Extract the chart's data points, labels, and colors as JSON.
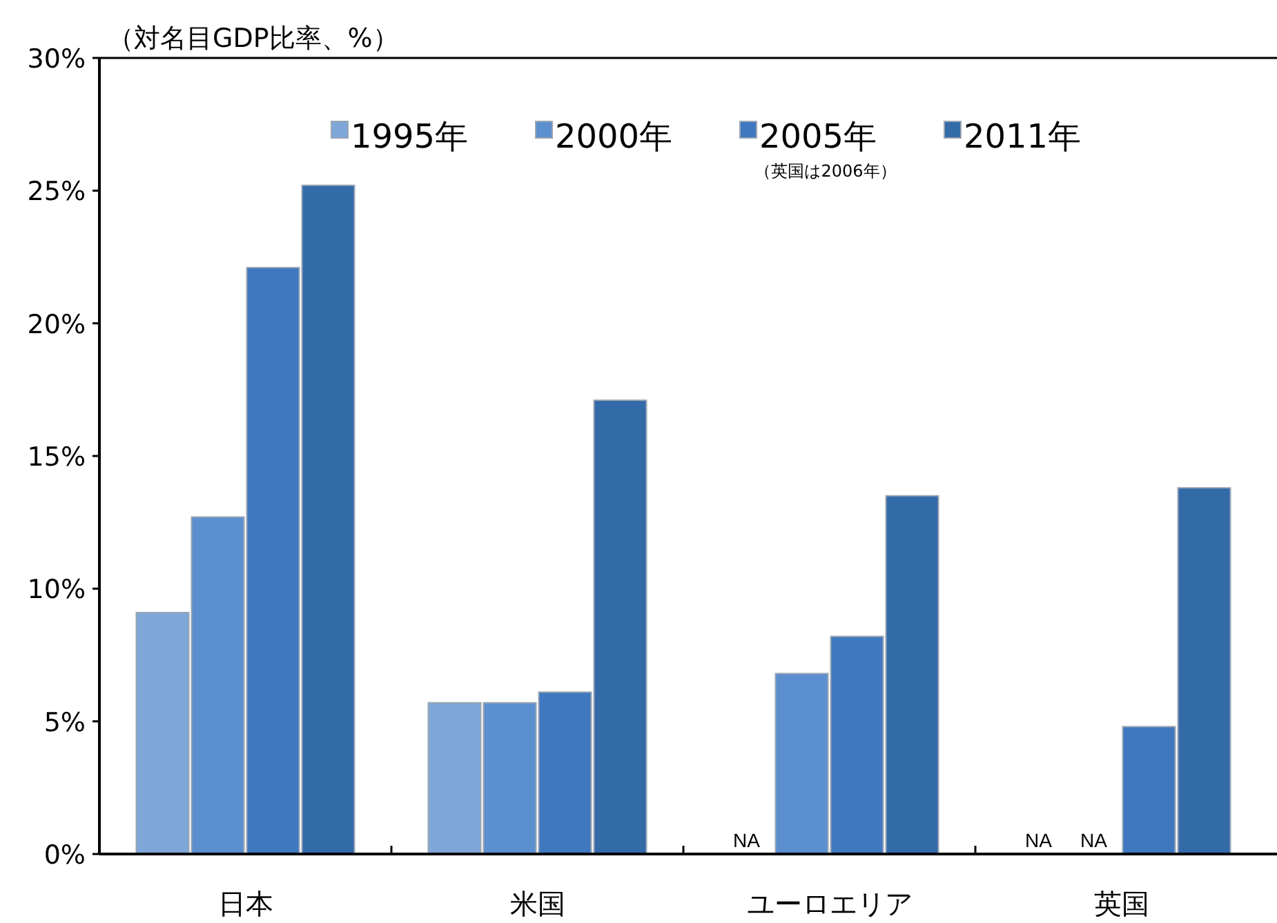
{
  "chart_data": {
    "type": "bar",
    "ylabel": "（対名目GDP比率、%）",
    "categories": [
      "日本",
      "米国",
      "ユーロエリア",
      "英国"
    ],
    "series": [
      {
        "name": "1995年",
        "color": "#7ea6d8",
        "values": [
          9.1,
          5.7,
          null,
          null
        ],
        "value_labels": [
          null,
          null,
          "NA",
          "NA"
        ]
      },
      {
        "name": "2000年",
        "color": "#5b8fcf",
        "values": [
          12.7,
          5.7,
          6.8,
          null
        ],
        "value_labels": [
          null,
          null,
          null,
          "NA"
        ]
      },
      {
        "name": "2005年",
        "color": "#3f78bf",
        "values": [
          22.1,
          6.1,
          8.2,
          4.8
        ]
      },
      {
        "name": "2011年",
        "color": "#336aa8",
        "values": [
          25.2,
          17.1,
          13.5,
          13.8
        ]
      }
    ],
    "annotations": [
      "（英国は2006年）"
    ],
    "ylim": [
      0,
      30
    ],
    "yticks": [
      {
        "value": 0,
        "label": "0%"
      },
      {
        "value": 5,
        "label": "5%"
      },
      {
        "value": 10,
        "label": "10%"
      },
      {
        "value": 15,
        "label": "15%"
      },
      {
        "value": 20,
        "label": "20%"
      },
      {
        "value": 25,
        "label": "25%"
      },
      {
        "value": 30,
        "label": "30%"
      }
    ],
    "grid": false,
    "legend": "top"
  }
}
